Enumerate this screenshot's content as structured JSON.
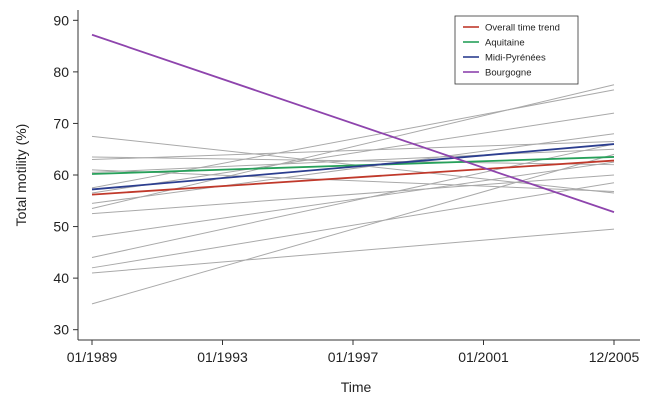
{
  "chart_data": {
    "type": "line",
    "xlabel": "Time",
    "ylabel": "Total motility (%)",
    "x_ticks": [
      "01/1989",
      "01/1993",
      "01/1997",
      "01/2001",
      "12/2005"
    ],
    "x_range": [
      "1989-01",
      "2005-12"
    ],
    "ylim": [
      28,
      92
    ],
    "y_ticks": [
      30,
      40,
      50,
      60,
      70,
      80,
      90
    ],
    "grid": false,
    "legend_position": "top-right",
    "series": [
      {
        "name": "Overall time trend",
        "color": "#c0392b",
        "width": 1.8,
        "start": 56.2,
        "end": 62.8
      },
      {
        "name": "Aquitaine",
        "color": "#27a05a",
        "width": 1.8,
        "start": 60.2,
        "end": 63.5
      },
      {
        "name": "Midi-Pyrénées",
        "color": "#2c3e8f",
        "width": 1.8,
        "start": 57.2,
        "end": 66.0
      },
      {
        "name": "Bourgogne",
        "color": "#8e44ad",
        "width": 1.8,
        "start": 87.2,
        "end": 52.8
      }
    ],
    "other_regions": {
      "color": "#a9a9a9",
      "width": 1,
      "lines": [
        {
          "start": 67.5,
          "end": 56.5
        },
        {
          "start": 63.5,
          "end": 62.0
        },
        {
          "start": 63.0,
          "end": 66.5
        },
        {
          "start": 61.0,
          "end": 56.8
        },
        {
          "start": 60.5,
          "end": 65.0
        },
        {
          "start": 57.5,
          "end": 76.5
        },
        {
          "start": 56.5,
          "end": 72.0
        },
        {
          "start": 54.5,
          "end": 68.0
        },
        {
          "start": 53.5,
          "end": 77.5
        },
        {
          "start": 52.5,
          "end": 60.0
        },
        {
          "start": 48.0,
          "end": 62.5
        },
        {
          "start": 44.0,
          "end": 66.0
        },
        {
          "start": 42.0,
          "end": 58.5
        },
        {
          "start": 41.0,
          "end": 49.5
        },
        {
          "start": 35.0,
          "end": 64.0
        }
      ]
    }
  }
}
